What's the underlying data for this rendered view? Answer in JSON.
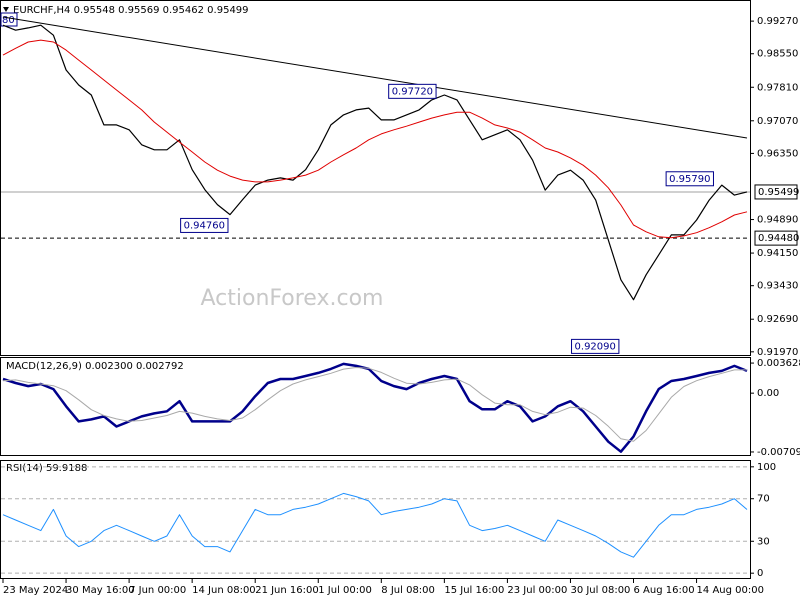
{
  "chart_data": [
    {
      "type": "line",
      "title": "EURCHF,H4 0.95548 0.95569 0.95462 0.95499",
      "clipped_label": "80",
      "watermark": "ActionForex.com",
      "xlim": [
        0,
        118
      ],
      "x": [
        0,
        2,
        4,
        6,
        8,
        10,
        12,
        14,
        16,
        18,
        20,
        22,
        24,
        26,
        28,
        30,
        32,
        34,
        36,
        38,
        40,
        42,
        44,
        46,
        48,
        50,
        52,
        54,
        56,
        58,
        60,
        62,
        64,
        66,
        68,
        70,
        72,
        74,
        76,
        78,
        80,
        82,
        84,
        86,
        88,
        90,
        92,
        94,
        96,
        98,
        100,
        102,
        104,
        106,
        108,
        110,
        112,
        114,
        116,
        118
      ],
      "ylim": [
        0.919,
        0.9967
      ],
      "yticks": [
        {
          "value": 0.9927,
          "label": "0.99270"
        },
        {
          "value": 0.9855,
          "label": "0.98550"
        },
        {
          "value": 0.9781,
          "label": "0.97810"
        },
        {
          "value": 0.9707,
          "label": "0.97070"
        },
        {
          "value": 0.9635,
          "label": "0.96350"
        },
        {
          "value": 0.9489,
          "label": "0.94890"
        },
        {
          "value": 0.9415,
          "label": "0.94150"
        },
        {
          "value": 0.9343,
          "label": "0.93430"
        },
        {
          "value": 0.9269,
          "label": "0.92690"
        },
        {
          "value": 0.9197,
          "label": "0.91970"
        }
      ],
      "series": [
        {
          "color": "#000000",
          "width": 1.2,
          "values": [
            0.9918,
            0.9907,
            0.9912,
            0.9918,
            0.9896,
            0.9819,
            0.9786,
            0.9764,
            0.9698,
            0.9698,
            0.9687,
            0.9654,
            0.9643,
            0.9643,
            0.9665,
            0.9599,
            0.9555,
            0.9522,
            0.95,
            0.9533,
            0.9565,
            0.9576,
            0.9581,
            0.9576,
            0.9599,
            0.9643,
            0.9698,
            0.972,
            0.9731,
            0.9735,
            0.9709,
            0.9709,
            0.972,
            0.9731,
            0.9753,
            0.9764,
            0.9753,
            0.9709,
            0.9665,
            0.9676,
            0.9687,
            0.9665,
            0.962,
            0.9554,
            0.9587,
            0.9598,
            0.9576,
            0.9532,
            0.9444,
            0.9356,
            0.9312,
            0.9367,
            0.9411,
            0.9455,
            0.9455,
            0.9488,
            0.9532,
            0.9565,
            0.9543,
            0.955
          ]
        },
        {
          "color": "#e00000",
          "width": 1,
          "values": [
            0.9852,
            0.9867,
            0.9881,
            0.9885,
            0.9881,
            0.9863,
            0.9841,
            0.9819,
            0.9797,
            0.9775,
            0.9753,
            0.9731,
            0.9704,
            0.9682,
            0.966,
            0.9638,
            0.9616,
            0.9598,
            0.9585,
            0.9576,
            0.9572,
            0.9572,
            0.9576,
            0.9581,
            0.9587,
            0.9598,
            0.9616,
            0.9632,
            0.9647,
            0.9665,
            0.9678,
            0.9687,
            0.9695,
            0.9704,
            0.9713,
            0.972,
            0.9726,
            0.9726,
            0.9713,
            0.9698,
            0.9691,
            0.9682,
            0.9665,
            0.9647,
            0.9638,
            0.9625,
            0.9609,
            0.9587,
            0.9559,
            0.9521,
            0.9477,
            0.9462,
            0.9451,
            0.9449,
            0.9453,
            0.946,
            0.9471,
            0.9484,
            0.9499,
            0.9506
          ]
        },
        {
          "color": "#000000",
          "width": 1,
          "x": [
            0,
            118
          ],
          "values": [
            0.9936,
            0.9669
          ]
        }
      ],
      "price_lines": [
        {
          "value": 0.95499,
          "label": "0.95499",
          "dashed": false
        },
        {
          "value": 0.9448,
          "label": "0.94480",
          "dashed": true
        }
      ],
      "annotations": [
        {
          "x": 69,
          "value": 0.9772,
          "label": "0.97720"
        },
        {
          "x": 36,
          "value": 0.9476,
          "label": "0.94760"
        },
        {
          "x": 113,
          "value": 0.9579,
          "label": "0.95790"
        },
        {
          "x": 98,
          "value": 0.9209,
          "label": "0.92090"
        }
      ],
      "annotation_color": "#00008b"
    },
    {
      "type": "line",
      "title": "MACD(12,26,9) 0.002300 0.002792",
      "ylim": [
        -0.00758,
        0.00424
      ],
      "yticks": [
        0.003628,
        {
          "value": 0,
          "label": "0.00"
        },
        -0.007093
      ],
      "grid": false,
      "series": [
        {
          "color": "#00008b",
          "width": 2.5,
          "values": [
            0.00171,
            0.00122,
            0.00085,
            0.0011,
            0.00049,
            -0.00158,
            -0.00341,
            -0.00317,
            -0.0028,
            -0.00402,
            -0.00341,
            -0.0028,
            -0.00244,
            -0.00219,
            -0.00097,
            -0.00341,
            -0.00341,
            -0.00341,
            -0.00341,
            -0.00219,
            -0.00037,
            0.00122,
            0.00171,
            0.00171,
            0.00207,
            0.00244,
            0.00292,
            0.00353,
            0.00329,
            0.00292,
            0.00146,
            0.00085,
            0.00049,
            0.00122,
            0.00171,
            0.00207,
            0.00171,
            -0.00097,
            -0.00195,
            -0.00195,
            -0.00097,
            -0.00158,
            -0.00341,
            -0.0028,
            -0.00158,
            -0.00097,
            -0.00219,
            -0.00402,
            -0.00585,
            -0.00706,
            -0.00524,
            -0.00219,
            0.00049,
            0.00146,
            0.00171,
            0.00207,
            0.00244,
            0.00268,
            0.00329,
            0.00268
          ]
        },
        {
          "color": "#a9a9a9",
          "width": 1,
          "values": [
            0.0015,
            0.0016,
            0.0013,
            0.0011,
            0.0009,
            0.0003,
            -0.0008,
            -0.002,
            -0.0027,
            -0.0031,
            -0.0034,
            -0.0033,
            -0.003,
            -0.0027,
            -0.0022,
            -0.0024,
            -0.0028,
            -0.0031,
            -0.0033,
            -0.003,
            -0.002,
            -0.0008,
            0.0003,
            0.0011,
            0.0016,
            0.002,
            0.0024,
            0.0029,
            0.0031,
            0.003,
            0.0025,
            0.0018,
            0.0012,
            0.0011,
            0.0013,
            0.0016,
            0.0017,
            0.001,
            -0.0002,
            -0.0012,
            -0.0014,
            -0.0014,
            -0.0022,
            -0.0026,
            -0.0023,
            -0.0017,
            -0.0018,
            -0.0027,
            -0.004,
            -0.0055,
            -0.0058,
            -0.0045,
            -0.0025,
            -0.0005,
            0.0008,
            0.0015,
            0.002,
            0.0024,
            0.0028,
            0.0028
          ]
        }
      ]
    },
    {
      "type": "line",
      "title": "RSI(14) 59.9188",
      "ylim": [
        -5,
        105
      ],
      "yticks": [
        100,
        70,
        30,
        0
      ],
      "grid": true,
      "xticks": [
        {
          "value": 0,
          "label": "23 May 2024"
        },
        {
          "value": 10,
          "label": "30 May 16:00"
        },
        {
          "value": 20,
          "label": "7 Jun 00:00"
        },
        {
          "value": 30,
          "label": "14 Jun 08:00"
        },
        {
          "value": 40,
          "label": "21 Jun 16:00"
        },
        {
          "value": 50,
          "label": "1 Jul 00:00"
        },
        {
          "value": 60,
          "label": "8 Jul 08:00"
        },
        {
          "value": 70,
          "label": "15 Jul 16:00"
        },
        {
          "value": 80,
          "label": "23 Jul 00:00"
        },
        {
          "value": 90,
          "label": "30 Jul 08:00"
        },
        {
          "value": 100,
          "label": "6 Aug 16:00"
        },
        {
          "value": 110,
          "label": "14 Aug 00:00"
        }
      ],
      "series": [
        {
          "color": "#1e90ff",
          "width": 1,
          "values": [
            55,
            50,
            45,
            40,
            60,
            35,
            25,
            30,
            40,
            45,
            40,
            35,
            30,
            35,
            55,
            35,
            25,
            25,
            20,
            40,
            60,
            55,
            55,
            60,
            62,
            65,
            70,
            75,
            72,
            68,
            55,
            58,
            60,
            62,
            65,
            70,
            68,
            45,
            40,
            42,
            45,
            40,
            35,
            30,
            50,
            45,
            40,
            35,
            28,
            20,
            15,
            30,
            45,
            55,
            55,
            60,
            62,
            65,
            70,
            59.9
          ]
        }
      ]
    }
  ]
}
